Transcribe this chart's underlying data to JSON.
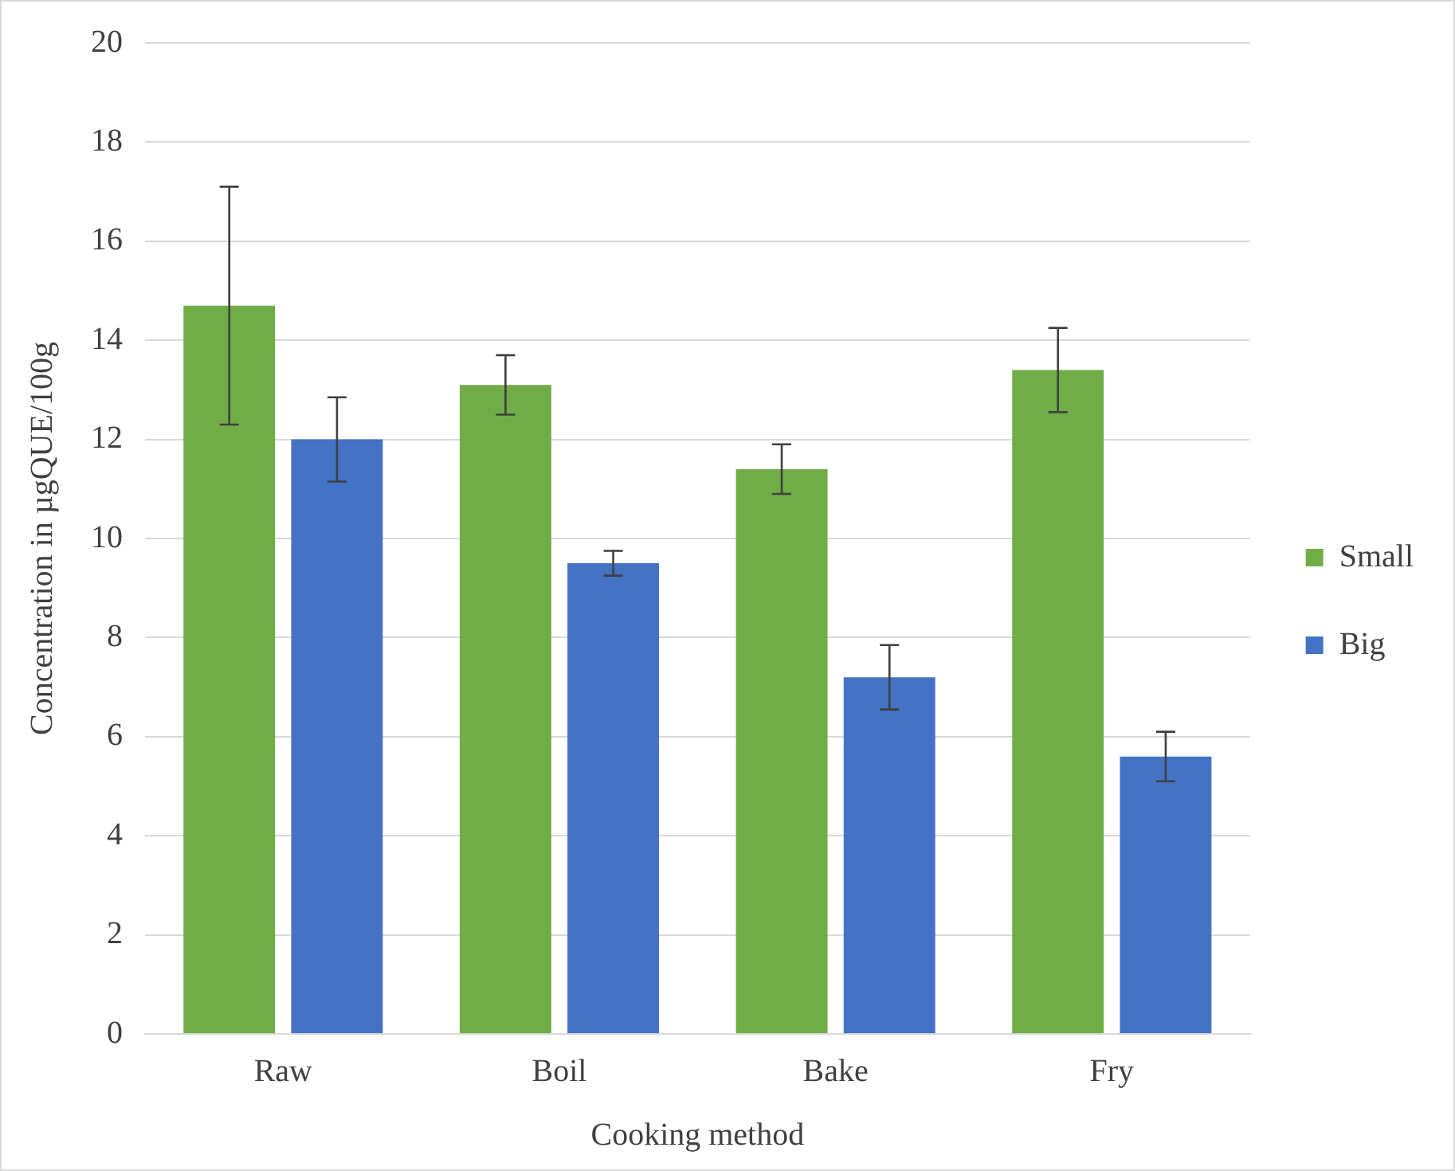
{
  "chart_data": {
    "type": "bar",
    "xlabel": "Cooking method",
    "ylabel": "Concentration in µgQUE/100g",
    "categories": [
      "Raw",
      "Boil",
      "Bake",
      "Fry"
    ],
    "series": [
      {
        "name": "Small",
        "color": "#70ad47",
        "values": [
          14.7,
          13.1,
          11.4,
          13.4
        ],
        "errors": [
          2.4,
          0.6,
          0.5,
          0.85
        ]
      },
      {
        "name": "Big",
        "color": "#4472c4",
        "values": [
          12.0,
          9.5,
          7.2,
          5.6
        ],
        "errors": [
          0.85,
          0.25,
          0.65,
          0.5
        ]
      }
    ],
    "ylim": [
      0,
      20
    ],
    "yticks": [
      0,
      2,
      4,
      6,
      8,
      10,
      12,
      14,
      16,
      18,
      20
    ],
    "grid": "y",
    "legend": "right"
  }
}
